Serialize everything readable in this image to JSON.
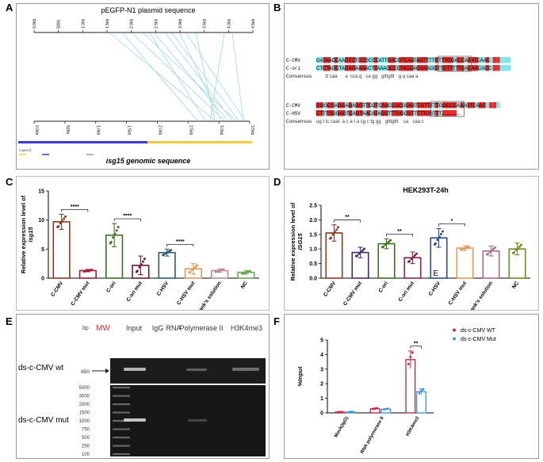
{
  "labels": {
    "A": "A",
    "B": "B",
    "C": "C",
    "D": "D",
    "E": "E",
    "F": "F"
  },
  "panel_a": {
    "title": "pEGFP-N1 plasmid sequence",
    "subtitle": "isg15 genomic sequence",
    "legend_title": "Legend:",
    "top_ticks": [
      "0.0kb",
      "500b",
      "1.0kb",
      "1.5kb",
      "2.0kb",
      "2.5kb",
      "3.0kb",
      "3.5kb",
      "4.0kb",
      "4.5kb"
    ],
    "bottom_ticks": [
      "0.0kb",
      "500b",
      "1.0kb",
      "1.5kb",
      "2.0kb",
      "2.5kb",
      "3.0kb",
      "3.5kb"
    ],
    "colors": {
      "link": "#9fd4e0",
      "gene_blue": "#3b3bd6",
      "gene_yellow": "#f5c842"
    }
  },
  "panel_b": {
    "block1": {
      "rows": [
        {
          "name": "C-CMV",
          "seq": "GATAACCAAGTCTCCGCCCATTGACGTCAATAGTTTTGTTTGGACCAAATCAAC"
        },
        {
          "name": "C-ori",
          "seq": "CTCTAGCTAGAGAAAACTTAAAGCCCTACCAGGAAGGTTGTTTTTGACAACACC"
        },
        {
          "name": "Consensus",
          "seq": "       tt caa      a  cca g   ca gg   gtttgttt   g a caa a"
        }
      ]
    },
    "block2": {
      "rows": [
        {
          "name": "C-CMV",
          "seq": "GGGCGAGGAGAGGTTCGTCAACCACGCAATTGTTTTTGGCCCAAAGTCAAC"
        },
        {
          "name": "C-HSV",
          "seq": "CTTTGGGAGTCAGTAACATAGGTTTGGCGTTTTTCGTTT..............."
        },
        {
          "name": "Consensus",
          "seq": "ug t tc caat  a c a t a cg c tg gg   gtttgttt    ca   caa c"
        }
      ]
    },
    "colors": {
      "red": "#e52b2b",
      "cyan": "#7ee6ee",
      "box": "#666666"
    }
  },
  "chart_data": [
    {
      "type": "bar",
      "panel": "C",
      "title": "",
      "xlabel": "",
      "ylabel": "Relative expression level of isg15",
      "ylabel_italic": "isg15",
      "ylim": [
        0,
        15
      ],
      "yticks": [
        "0",
        "5",
        "10",
        "15"
      ],
      "categories": [
        "C-CMV",
        "C-CMV mut",
        "C-ori",
        "C-ori mut",
        "C-HSV",
        "C-HSV mut",
        "Hank's solution",
        "NC"
      ],
      "values": [
        9.7,
        1.3,
        7.4,
        2.2,
        4.4,
        1.6,
        1.3,
        1.0
      ],
      "errors": [
        1.3,
        0.2,
        2.0,
        1.6,
        0.6,
        0.9,
        0.3,
        0.3
      ],
      "colors": [
        "#8b3a1e",
        "#9c1f3c",
        "#3e6e22",
        "#6b1a2f",
        "#2c5a6e",
        "#e09a5a",
        "#b58a9a",
        "#6aa84f"
      ],
      "significance": [
        {
          "from": 0,
          "to": 1,
          "label": "****"
        },
        {
          "from": 2,
          "to": 3,
          "label": "****"
        },
        {
          "from": 4,
          "to": 5,
          "label": "****"
        }
      ]
    },
    {
      "type": "bar",
      "panel": "D",
      "title": "HEK293T-24h",
      "xlabel": "",
      "ylabel": "Relative expression level of ISG15",
      "ylabel_italic": "ISG15",
      "ylim": [
        0,
        2.5
      ],
      "yticks": [
        "0.0",
        "0.5",
        "1.0",
        "1.5",
        "2.0",
        "2.5"
      ],
      "categories": [
        "C-CMV",
        "C-CMV mut",
        "C-ori",
        "C-ori mut",
        "C-HSV",
        "C-HSV mut",
        "Hank's solution",
        "NC"
      ],
      "values": [
        1.55,
        0.88,
        1.18,
        0.7,
        1.38,
        1.03,
        0.93,
        1.0
      ],
      "errors": [
        0.28,
        0.18,
        0.17,
        0.2,
        0.32,
        0.08,
        0.17,
        0.2
      ],
      "colors": [
        "#8b3a1e",
        "#4a2a6b",
        "#3e6e22",
        "#8b1f4a",
        "#2c4a8c",
        "#e09a5a",
        "#b06a8a",
        "#6b8e23"
      ],
      "significance": [
        {
          "from": 0,
          "to": 1,
          "label": "**"
        },
        {
          "from": 2,
          "to": 3,
          "label": "**"
        },
        {
          "from": 4,
          "to": 5,
          "label": "*"
        }
      ],
      "annotation": "E"
    },
    {
      "type": "bar",
      "panel": "F",
      "title": "",
      "xlabel": "",
      "ylabel": "%Input",
      "ylim": [
        0,
        5
      ],
      "yticks": [
        "0",
        "1",
        "2",
        "3",
        "4",
        "5"
      ],
      "categories": [
        "Mock(IgG)",
        "RNA polymerase II",
        "H3K4me3"
      ],
      "series": [
        {
          "name": "ds-c-CMV WT",
          "values": [
            0.05,
            0.28,
            3.65
          ],
          "errors": [
            0.02,
            0.05,
            0.6
          ],
          "color": "#c0304a"
        },
        {
          "name": "ds-c-CMV Mut",
          "values": [
            0.06,
            0.25,
            1.45
          ],
          "errors": [
            0.02,
            0.04,
            0.2
          ],
          "color": "#4a9ad8"
        }
      ],
      "significance": [
        {
          "category": 2,
          "label": "**"
        }
      ],
      "legend": "top-right"
    }
  ],
  "panel_e": {
    "bp_label": "bp",
    "mw_label": "MW",
    "lanes": [
      "Input",
      "IgG",
      "RNA",
      "Polymerase II",
      "H3K4me3"
    ],
    "row_wt": "ds-c-CMV  wt",
    "row_mut": "ds-c-CMV mut",
    "wt_marker": "650",
    "ladder": [
      "5000",
      "3000",
      "2000",
      "1500",
      "1000",
      "750",
      "500",
      "250",
      "100"
    ],
    "colors": {
      "mw": "#d03030"
    }
  }
}
